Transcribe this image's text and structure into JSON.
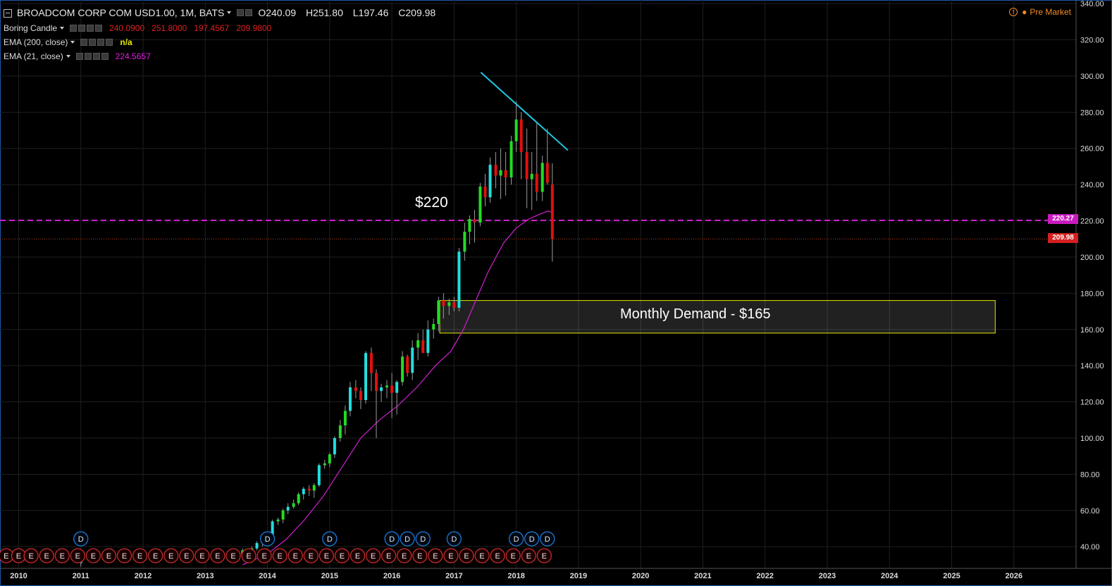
{
  "header": {
    "symbol_title": "BROADCOM CORP COM USD1.00, 1M, BATS",
    "open": "O240.09",
    "high": "H251.80",
    "low": "L197.46",
    "close": "C209.98"
  },
  "indicators": [
    {
      "label": "Boring Candle",
      "values": [
        "240.0900",
        "251.8000",
        "197.4567",
        "209.9800"
      ],
      "color": "#e02020"
    },
    {
      "label": "EMA (200, close)",
      "values": [
        "n/a"
      ],
      "color": "#e8e800"
    },
    {
      "label": "EMA (21, close)",
      "values": [
        "224.5657"
      ],
      "color": "#e020e0"
    }
  ],
  "premarket": "Pre Market",
  "annotations": {
    "level_label": "$220",
    "zone_label": "Monthly Demand - $165",
    "level_tag": "220.27",
    "last_price_tag": "209.98"
  },
  "colors": {
    "background": "#000000",
    "grid": "#1f1f1f",
    "up_candle": "#22dd22",
    "up_candle_alt": "#22dddd",
    "down_candle": "#e01010",
    "ema21": "#d020d0",
    "level_line": "#d020d0",
    "trendline": "#20c8e0",
    "zone_border": "#e8e800",
    "axis_text": "#dddddd",
    "event_e": "#d03030",
    "event_d": "#2080e0"
  },
  "chart_data": {
    "type": "candlestick",
    "interval": "monthly",
    "y_ticks": [
      40,
      60,
      80,
      100,
      120,
      140,
      160,
      180,
      200,
      220,
      240,
      260,
      280,
      300,
      320,
      340
    ],
    "y_tick_labels": [
      "40.00",
      "60.00",
      "80.00",
      "100.00",
      "120.00",
      "140.00",
      "160.00",
      "180.00",
      "200.00",
      "220.00",
      "240.00",
      "260.00",
      "280.00",
      "300.00",
      "320.00",
      "340.00"
    ],
    "x_labels": [
      "2010",
      "2011",
      "2012",
      "2013",
      "2014",
      "2015",
      "2016",
      "2017",
      "2018",
      "2019",
      "2020",
      "2021",
      "2022",
      "2023",
      "2024",
      "2025",
      "2026"
    ],
    "x_range": [
      2009.7,
      2027.0
    ],
    "y_range": [
      28,
      342
    ],
    "candles": [
      {
        "t": 2011.0,
        "o": 31,
        "h": 33,
        "l": 29,
        "c": 32
      },
      {
        "t": 2011.5,
        "o": 33,
        "h": 37,
        "l": 32,
        "c": 36
      },
      {
        "t": 2012.2,
        "o": 35,
        "h": 39,
        "l": 34,
        "c": 37
      },
      {
        "t": 2013.0,
        "o": 35,
        "h": 37,
        "l": 33,
        "c": 36
      },
      {
        "t": 2013.6,
        "o": 36,
        "h": 39,
        "l": 35,
        "c": 38
      },
      {
        "t": 2013.75,
        "o": 38,
        "h": 40,
        "l": 37,
        "c": 39
      },
      {
        "t": 2013.83,
        "o": 39,
        "h": 43,
        "l": 38,
        "c": 42
      },
      {
        "t": 2013.92,
        "o": 42,
        "h": 46,
        "l": 40,
        "c": 44
      },
      {
        "t": 2014.0,
        "o": 44,
        "h": 48,
        "l": 42,
        "c": 46
      },
      {
        "t": 2014.08,
        "o": 46,
        "h": 55,
        "l": 45,
        "c": 54
      },
      {
        "t": 2014.17,
        "o": 54,
        "h": 56,
        "l": 52,
        "c": 55
      },
      {
        "t": 2014.25,
        "o": 55,
        "h": 61,
        "l": 53,
        "c": 60
      },
      {
        "t": 2014.33,
        "o": 60,
        "h": 64,
        "l": 58,
        "c": 62
      },
      {
        "t": 2014.42,
        "o": 62,
        "h": 66,
        "l": 61,
        "c": 64
      },
      {
        "t": 2014.5,
        "o": 64,
        "h": 70,
        "l": 63,
        "c": 69
      },
      {
        "t": 2014.58,
        "o": 69,
        "h": 73,
        "l": 66,
        "c": 72
      },
      {
        "t": 2014.67,
        "o": 72,
        "h": 74,
        "l": 68,
        "c": 71
      },
      {
        "t": 2014.75,
        "o": 71,
        "h": 75,
        "l": 67,
        "c": 74
      },
      {
        "t": 2014.83,
        "o": 74,
        "h": 86,
        "l": 73,
        "c": 85
      },
      {
        "t": 2014.92,
        "o": 85,
        "h": 88,
        "l": 83,
        "c": 86
      },
      {
        "t": 2015.0,
        "o": 86,
        "h": 92,
        "l": 84,
        "c": 91
      },
      {
        "t": 2015.08,
        "o": 91,
        "h": 101,
        "l": 89,
        "c": 100
      },
      {
        "t": 2015.17,
        "o": 100,
        "h": 110,
        "l": 98,
        "c": 107
      },
      {
        "t": 2015.25,
        "o": 107,
        "h": 118,
        "l": 102,
        "c": 115
      },
      {
        "t": 2015.33,
        "o": 115,
        "h": 131,
        "l": 112,
        "c": 128
      },
      {
        "t": 2015.42,
        "o": 128,
        "h": 132,
        "l": 122,
        "c": 126
      },
      {
        "t": 2015.5,
        "o": 126,
        "h": 128,
        "l": 116,
        "c": 121
      },
      {
        "t": 2015.58,
        "o": 121,
        "h": 148,
        "l": 119,
        "c": 147
      },
      {
        "t": 2015.67,
        "o": 147,
        "h": 150,
        "l": 126,
        "c": 136
      },
      {
        "t": 2015.75,
        "o": 136,
        "h": 138,
        "l": 100,
        "c": 126
      },
      {
        "t": 2015.83,
        "o": 126,
        "h": 130,
        "l": 120,
        "c": 128
      },
      {
        "t": 2015.92,
        "o": 128,
        "h": 132,
        "l": 122,
        "c": 129
      },
      {
        "t": 2016.0,
        "o": 129,
        "h": 136,
        "l": 111,
        "c": 125
      },
      {
        "t": 2016.08,
        "o": 125,
        "h": 132,
        "l": 113,
        "c": 131
      },
      {
        "t": 2016.17,
        "o": 131,
        "h": 148,
        "l": 129,
        "c": 145
      },
      {
        "t": 2016.25,
        "o": 145,
        "h": 146,
        "l": 134,
        "c": 136
      },
      {
        "t": 2016.33,
        "o": 136,
        "h": 154,
        "l": 132,
        "c": 150
      },
      {
        "t": 2016.42,
        "o": 150,
        "h": 158,
        "l": 143,
        "c": 154
      },
      {
        "t": 2016.5,
        "o": 154,
        "h": 160,
        "l": 147,
        "c": 147
      },
      {
        "t": 2016.58,
        "o": 147,
        "h": 165,
        "l": 145,
        "c": 160
      },
      {
        "t": 2016.67,
        "o": 160,
        "h": 166,
        "l": 155,
        "c": 163
      },
      {
        "t": 2016.75,
        "o": 163,
        "h": 178,
        "l": 159,
        "c": 176
      },
      {
        "t": 2016.83,
        "o": 176,
        "h": 180,
        "l": 166,
        "c": 173
      },
      {
        "t": 2016.92,
        "o": 173,
        "h": 177,
        "l": 168,
        "c": 175
      },
      {
        "t": 2017.0,
        "o": 175,
        "h": 178,
        "l": 170,
        "c": 172
      },
      {
        "t": 2017.08,
        "o": 172,
        "h": 205,
        "l": 170,
        "c": 203
      },
      {
        "t": 2017.17,
        "o": 203,
        "h": 219,
        "l": 198,
        "c": 214
      },
      {
        "t": 2017.25,
        "o": 214,
        "h": 223,
        "l": 207,
        "c": 221
      },
      {
        "t": 2017.33,
        "o": 221,
        "h": 226,
        "l": 208,
        "c": 219
      },
      {
        "t": 2017.42,
        "o": 219,
        "h": 241,
        "l": 217,
        "c": 239
      },
      {
        "t": 2017.5,
        "o": 239,
        "h": 246,
        "l": 228,
        "c": 233
      },
      {
        "t": 2017.58,
        "o": 233,
        "h": 255,
        "l": 230,
        "c": 251
      },
      {
        "t": 2017.67,
        "o": 251,
        "h": 258,
        "l": 238,
        "c": 245
      },
      {
        "t": 2017.75,
        "o": 245,
        "h": 260,
        "l": 232,
        "c": 248
      },
      {
        "t": 2017.83,
        "o": 248,
        "h": 258,
        "l": 234,
        "c": 244
      },
      {
        "t": 2017.92,
        "o": 244,
        "h": 267,
        "l": 240,
        "c": 264
      },
      {
        "t": 2018.0,
        "o": 264,
        "h": 286,
        "l": 258,
        "c": 276
      },
      {
        "t": 2018.08,
        "o": 276,
        "h": 280,
        "l": 243,
        "c": 258
      },
      {
        "t": 2018.17,
        "o": 258,
        "h": 271,
        "l": 227,
        "c": 243
      },
      {
        "t": 2018.25,
        "o": 243,
        "h": 258,
        "l": 226,
        "c": 246
      },
      {
        "t": 2018.33,
        "o": 246,
        "h": 274,
        "l": 231,
        "c": 236
      },
      {
        "t": 2018.42,
        "o": 236,
        "h": 256,
        "l": 231,
        "c": 252
      },
      {
        "t": 2018.5,
        "o": 252,
        "h": 271,
        "l": 240,
        "c": 241
      },
      {
        "t": 2018.58,
        "o": 240.09,
        "h": 251.8,
        "l": 197.46,
        "c": 209.98
      }
    ],
    "ema21": [
      [
        2013.6,
        30
      ],
      [
        2014.0,
        36
      ],
      [
        2014.3,
        44
      ],
      [
        2014.6,
        55
      ],
      [
        2014.9,
        68
      ],
      [
        2015.2,
        84
      ],
      [
        2015.5,
        100
      ],
      [
        2015.8,
        110
      ],
      [
        2016.1,
        118
      ],
      [
        2016.4,
        128
      ],
      [
        2016.7,
        140
      ],
      [
        2016.95,
        148
      ],
      [
        2017.15,
        160
      ],
      [
        2017.35,
        176
      ],
      [
        2017.55,
        192
      ],
      [
        2017.8,
        208
      ],
      [
        2018.0,
        216
      ],
      [
        2018.2,
        221
      ],
      [
        2018.4,
        224
      ],
      [
        2018.52,
        225.5
      ],
      [
        2018.58,
        224.57
      ]
    ],
    "level": 220.27,
    "last_price": 209.98,
    "trendline": [
      [
        2017.43,
        302
      ],
      [
        2018.83,
        259
      ]
    ],
    "demand_zone": {
      "x_start": 2016.77,
      "x_end": 2025.7,
      "y_low": 158,
      "y_high": 176
    },
    "events": {
      "E": [
        2009.8,
        2010.0,
        2010.2,
        2010.45,
        2010.7,
        2010.95,
        2011.2,
        2011.45,
        2011.7,
        2011.95,
        2012.2,
        2012.45,
        2012.7,
        2012.95,
        2013.2,
        2013.45,
        2013.7,
        2013.95,
        2014.2,
        2014.45,
        2014.7,
        2014.95,
        2015.2,
        2015.45,
        2015.7,
        2015.95,
        2016.2,
        2016.45,
        2016.7,
        2016.95,
        2017.2,
        2017.45,
        2017.7,
        2017.95,
        2018.2,
        2018.45
      ],
      "D": [
        2011.0,
        2014.0,
        2015.0,
        2016.0,
        2016.25,
        2016.5,
        2017.0,
        2018.0,
        2018.25,
        2018.5
      ]
    }
  }
}
